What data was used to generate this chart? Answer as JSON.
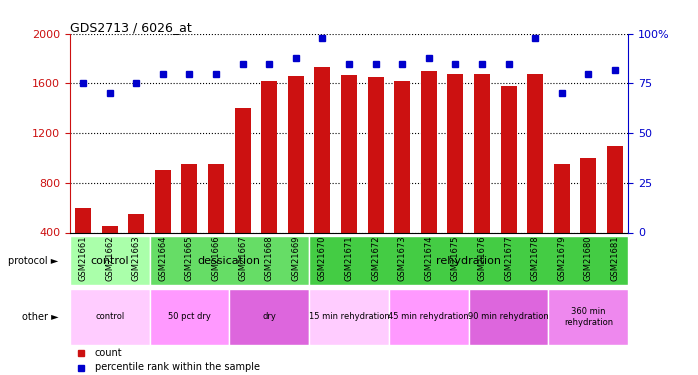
{
  "title": "GDS2713 / 6026_at",
  "samples": [
    "GSM21661",
    "GSM21662",
    "GSM21663",
    "GSM21664",
    "GSM21665",
    "GSM21666",
    "GSM21667",
    "GSM21668",
    "GSM21669",
    "GSM21670",
    "GSM21671",
    "GSM21672",
    "GSM21673",
    "GSM21674",
    "GSM21675",
    "GSM21676",
    "GSM21677",
    "GSM21678",
    "GSM21679",
    "GSM21680",
    "GSM21681"
  ],
  "counts": [
    600,
    450,
    550,
    900,
    950,
    950,
    1400,
    1620,
    1660,
    1730,
    1670,
    1650,
    1620,
    1700,
    1680,
    1680,
    1580,
    1680,
    950,
    1000,
    1100
  ],
  "percentiles": [
    75,
    70,
    75,
    80,
    80,
    80,
    85,
    85,
    88,
    98,
    85,
    85,
    85,
    88,
    85,
    85,
    85,
    98,
    70,
    80,
    82
  ],
  "ylim_left": [
    400,
    2000
  ],
  "ylim_right": [
    0,
    100
  ],
  "yticks_left": [
    400,
    800,
    1200,
    1600,
    2000
  ],
  "yticks_right": [
    0,
    25,
    50,
    75,
    100
  ],
  "bar_color": "#cc1111",
  "dot_color": "#0000cc",
  "protocol_groups": [
    {
      "label": "control",
      "start": 0,
      "end": 3,
      "color": "#aaffaa"
    },
    {
      "label": "dessication",
      "start": 3,
      "end": 9,
      "color": "#66dd66"
    },
    {
      "label": "rehydration",
      "start": 9,
      "end": 21,
      "color": "#44cc44"
    }
  ],
  "other_groups": [
    {
      "label": "control",
      "start": 0,
      "end": 3,
      "color": "#ffccff"
    },
    {
      "label": "50 pct dry",
      "start": 3,
      "end": 6,
      "color": "#ff99ff"
    },
    {
      "label": "dry",
      "start": 6,
      "end": 9,
      "color": "#dd66dd"
    },
    {
      "label": "15 min rehydration",
      "start": 9,
      "end": 12,
      "color": "#ffccff"
    },
    {
      "label": "45 min rehydration",
      "start": 12,
      "end": 15,
      "color": "#ff99ff"
    },
    {
      "label": "90 min rehydration",
      "start": 15,
      "end": 18,
      "color": "#dd66dd"
    },
    {
      "label": "360 min\nrehydration",
      "start": 18,
      "end": 21,
      "color": "#ee88ee"
    }
  ],
  "legend_items": [
    {
      "label": "count",
      "color": "#cc1111"
    },
    {
      "label": "percentile rank within the sample",
      "color": "#0000cc"
    }
  ]
}
